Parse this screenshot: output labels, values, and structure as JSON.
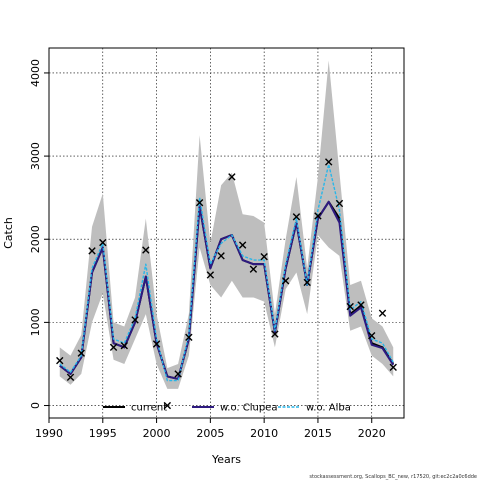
{
  "chart_data": {
    "type": "line",
    "xlabel": "Years",
    "ylabel": "Catch",
    "xlim": [
      1990,
      2023
    ],
    "ylim": [
      -150,
      4300
    ],
    "x_ticks": [
      1990,
      1995,
      2000,
      2005,
      2010,
      2015,
      2020
    ],
    "y_ticks": [
      0,
      1000,
      2000,
      3000,
      4000
    ],
    "grid": true,
    "legend_position": "bottom",
    "source_text": "stockassessment.org, Scallops_BC_new, r17520, git:ec2c2a0c6dde",
    "colors": {
      "band": "#bebebe",
      "current": "#000000",
      "wo_clupea": "#2e1a80",
      "wo_alba": "#29b6e8",
      "observed": "#000000"
    },
    "years": [
      1991,
      1992,
      1993,
      1994,
      1995,
      1996,
      1997,
      1998,
      1999,
      2000,
      2001,
      2002,
      2003,
      2004,
      2005,
      2006,
      2007,
      2008,
      2009,
      2010,
      2011,
      2012,
      2013,
      2014,
      2015,
      2016,
      2017,
      2018,
      2019,
      2020,
      2021,
      2022
    ],
    "confidence_band": {
      "upper": [
        700,
        600,
        850,
        2150,
        2550,
        1000,
        950,
        1300,
        2250,
        1100,
        450,
        500,
        1100,
        3250,
        1950,
        2650,
        2800,
        2300,
        2280,
        2200,
        1100,
        2000,
        2750,
        1650,
        2750,
        4150,
        2800,
        1450,
        1500,
        1050,
        950,
        700
      ],
      "lower": [
        350,
        250,
        380,
        1000,
        1350,
        550,
        500,
        800,
        1100,
        500,
        200,
        200,
        600,
        1900,
        1450,
        1300,
        1500,
        1300,
        1300,
        1250,
        700,
        1400,
        1600,
        1100,
        2050,
        1900,
        1800,
        900,
        950,
        600,
        500,
        350
      ]
    },
    "series": [
      {
        "name": "current",
        "values": [
          480,
          380,
          580,
          1600,
          1900,
          750,
          700,
          1000,
          1550,
          750,
          350,
          320,
          800,
          2400,
          1650,
          2000,
          2050,
          1750,
          1700,
          1700,
          880,
          1650,
          2200,
          1450,
          2250,
          2450,
          2250,
          1100,
          1200,
          750,
          700,
          500
        ]
      },
      {
        "name": "w.o. Clupea",
        "values": [
          480,
          380,
          580,
          1600,
          1900,
          750,
          700,
          1000,
          1550,
          750,
          350,
          320,
          800,
          2400,
          1650,
          2000,
          2050,
          1750,
          1700,
          1700,
          880,
          1650,
          2200,
          1450,
          2250,
          2450,
          2200,
          1080,
          1180,
          730,
          690,
          490
        ]
      },
      {
        "name": "w.o. Alba",
        "values": [
          500,
          400,
          600,
          1650,
          1950,
          800,
          750,
          1050,
          1700,
          800,
          300,
          300,
          850,
          2500,
          1700,
          1950,
          2050,
          1800,
          1750,
          1750,
          900,
          1700,
          2250,
          1450,
          2350,
          2900,
          2350,
          1150,
          1250,
          800,
          750,
          520
        ]
      }
    ],
    "observed": {
      "x": [
        1991,
        1992,
        1993,
        1994,
        1995,
        1996,
        1997,
        1998,
        1999,
        2000,
        2001,
        2002,
        2003,
        2004,
        2005,
        2006,
        2007,
        2008,
        2009,
        2010,
        2011,
        2012,
        2013,
        2014,
        2015,
        2016,
        2017,
        2018,
        2019,
        2020,
        2021,
        2022
      ],
      "y": [
        540,
        340,
        630,
        1860,
        1960,
        700,
        720,
        1030,
        1870,
        740,
        0,
        380,
        820,
        2440,
        1570,
        1800,
        2750,
        1930,
        1640,
        1790,
        860,
        1500,
        2270,
        1480,
        2280,
        2930,
        2430,
        1190,
        1210,
        840,
        1110,
        460
      ]
    }
  }
}
